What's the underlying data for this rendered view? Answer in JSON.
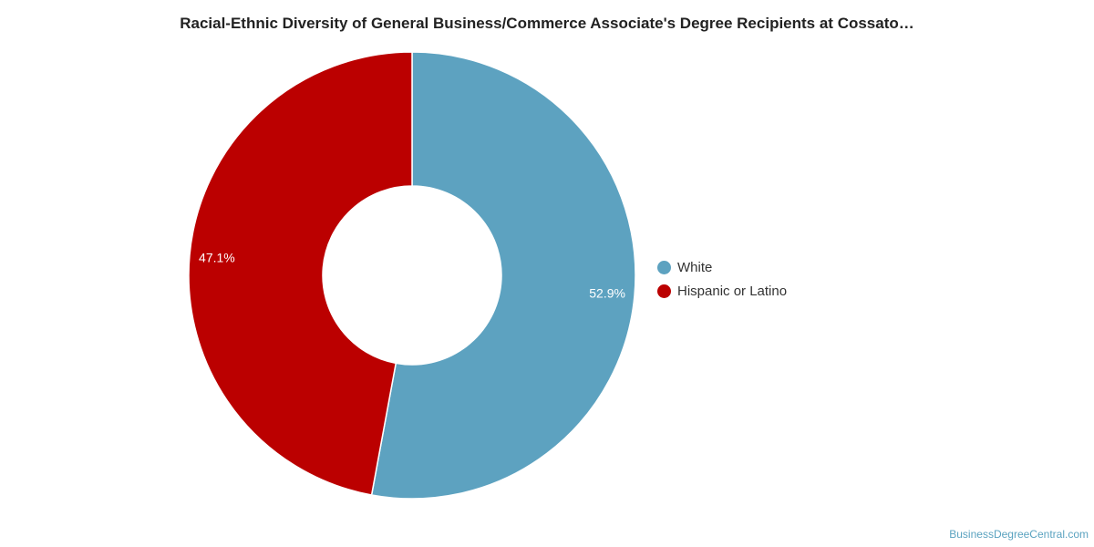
{
  "title": "Racial-Ethnic Diversity of General Business/Commerce Associate's Degree Recipients at Cossato…",
  "footer": "BusinessDegreeCentral.com",
  "chart_data": {
    "type": "pie",
    "donut": true,
    "slices": [
      {
        "name": "White",
        "value": 52.9,
        "label": "52.9%",
        "color": "#5da2c0"
      },
      {
        "name": "Hispanic or Latino",
        "value": 47.1,
        "label": "47.1%",
        "color": "#bb0000"
      }
    ],
    "legend_position": "right"
  }
}
